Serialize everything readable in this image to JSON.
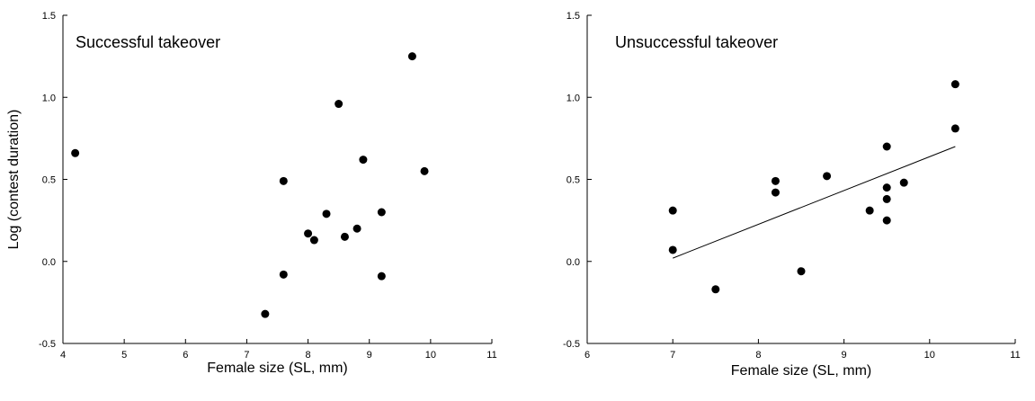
{
  "chart_data": [
    {
      "type": "scatter",
      "title": "Successful takeover",
      "xlabel": "Female size (SL, mm)",
      "ylabel": "Log (contest duration)",
      "xlim": [
        4,
        11
      ],
      "ylim": [
        -0.5,
        1.5
      ],
      "x_ticks": [
        "4",
        "5",
        "6",
        "7",
        "8",
        "9",
        "10",
        "11"
      ],
      "y_ticks": [
        "-0.5",
        "0.0",
        "0.5",
        "1.0",
        "1.5"
      ],
      "grid": false,
      "points": [
        {
          "x": 4.2,
          "y": 0.66
        },
        {
          "x": 7.3,
          "y": -0.32
        },
        {
          "x": 7.6,
          "y": 0.49
        },
        {
          "x": 7.6,
          "y": -0.08
        },
        {
          "x": 8.0,
          "y": 0.17
        },
        {
          "x": 8.1,
          "y": 0.13
        },
        {
          "x": 8.3,
          "y": 0.29
        },
        {
          "x": 8.5,
          "y": 0.96
        },
        {
          "x": 8.6,
          "y": 0.15
        },
        {
          "x": 8.8,
          "y": 0.2
        },
        {
          "x": 8.9,
          "y": 0.62
        },
        {
          "x": 9.2,
          "y": 0.3
        },
        {
          "x": 9.2,
          "y": -0.09
        },
        {
          "x": 9.7,
          "y": 1.25
        },
        {
          "x": 9.9,
          "y": 0.55
        }
      ]
    },
    {
      "type": "scatter",
      "title": "Unsuccessful takeover",
      "xlabel": "Female size (SL, mm)",
      "ylabel": "",
      "xlim": [
        6,
        11
      ],
      "ylim": [
        -0.5,
        1.5
      ],
      "x_ticks": [
        "6",
        "7",
        "8",
        "9",
        "10",
        "11"
      ],
      "y_ticks": [
        "-0.5",
        "0.0",
        "0.5",
        "1.0",
        "1.5"
      ],
      "grid": false,
      "points": [
        {
          "x": 7.0,
          "y": 0.31
        },
        {
          "x": 7.0,
          "y": 0.07
        },
        {
          "x": 7.5,
          "y": -0.17
        },
        {
          "x": 8.2,
          "y": 0.49
        },
        {
          "x": 8.2,
          "y": 0.42
        },
        {
          "x": 8.5,
          "y": -0.06
        },
        {
          "x": 8.8,
          "y": 0.52
        },
        {
          "x": 9.3,
          "y": 0.31
        },
        {
          "x": 9.5,
          "y": 0.7
        },
        {
          "x": 9.5,
          "y": 0.45
        },
        {
          "x": 9.5,
          "y": 0.38
        },
        {
          "x": 9.5,
          "y": 0.25
        },
        {
          "x": 9.7,
          "y": 0.48
        },
        {
          "x": 10.3,
          "y": 1.08
        },
        {
          "x": 10.3,
          "y": 0.81
        }
      ],
      "trendline": {
        "x1": 7.0,
        "y1": 0.02,
        "x2": 10.3,
        "y2": 0.7
      }
    }
  ]
}
